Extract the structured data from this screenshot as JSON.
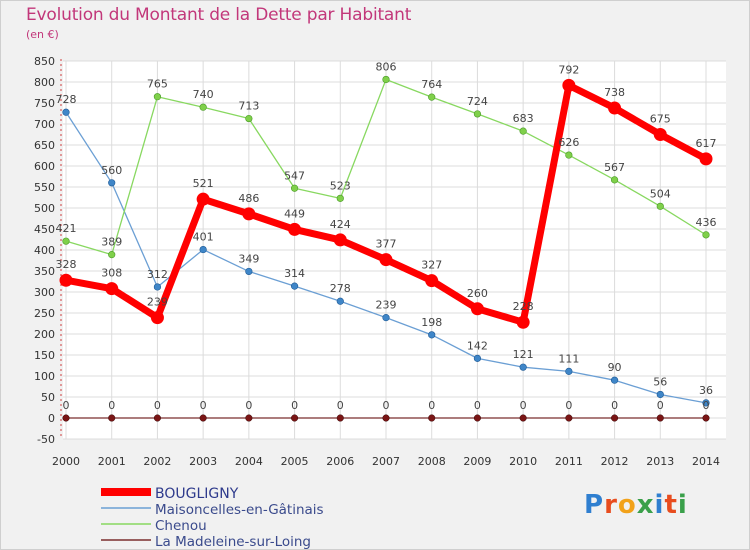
{
  "header": {
    "title": "Evolution du Montant de la Dette par Habitant",
    "unit": "(en €)"
  },
  "logo": {
    "text": "Proxiti",
    "colors": [
      "#2f7fd0",
      "#e84c1e",
      "#f2a21a",
      "#3aa04a",
      "#2f7fd0",
      "#e84c1e",
      "#3aa04a"
    ]
  },
  "chart_data": {
    "type": "line",
    "title": "Evolution du Montant de la Dette par Habitant",
    "ylabel": "(en €)",
    "xlabel": "",
    "ylim": [
      -50,
      850
    ],
    "yticks": [
      -50,
      0,
      50,
      100,
      150,
      200,
      250,
      300,
      350,
      400,
      450,
      500,
      550,
      600,
      650,
      700,
      750,
      800,
      850
    ],
    "x": [
      "2000",
      "2001",
      "2002",
      "2003",
      "2004",
      "2005",
      "2006",
      "2007",
      "2008",
      "2009",
      "2010",
      "2011",
      "2012",
      "2013",
      "2014"
    ],
    "grid": true,
    "legend_position": "bottom-left",
    "series": [
      {
        "name": "BOUGLIGNY",
        "color": "#ff0000",
        "values": [
          328,
          308,
          239,
          521,
          486,
          449,
          424,
          377,
          327,
          260,
          228,
          792,
          738,
          675,
          617
        ]
      },
      {
        "name": "Maisoncelles-en-Gâtinais",
        "color": "#6b9fd4",
        "values": [
          728,
          560,
          312,
          401,
          349,
          314,
          278,
          239,
          198,
          142,
          121,
          111,
          90,
          56,
          36
        ]
      },
      {
        "name": "Chenou",
        "color": "#88d860",
        "values": [
          421,
          389,
          765,
          740,
          713,
          547,
          523,
          806,
          764,
          724,
          683,
          626,
          567,
          504,
          436
        ]
      },
      {
        "name": "La Madeleine-sur-Loing",
        "color": "#7a2d2d",
        "values": [
          0,
          0,
          0,
          0,
          0,
          0,
          0,
          0,
          0,
          0,
          0,
          0,
          0,
          0,
          0
        ]
      }
    ]
  }
}
